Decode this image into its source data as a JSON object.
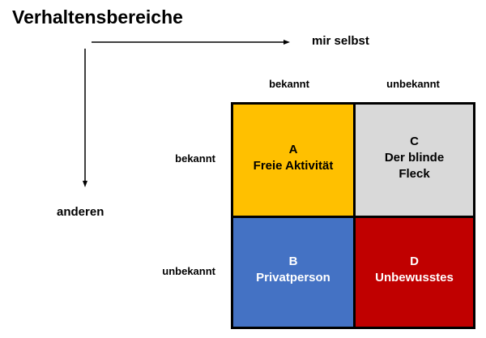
{
  "title": "Verhaltensbereiche",
  "axis_x_label": "mir selbst",
  "axis_y_label": "anderen",
  "columns": [
    "bekannt",
    "unbekannt"
  ],
  "rows": [
    "bekannt",
    "unbekannt"
  ],
  "quadrants": [
    {
      "letter": "A",
      "name": "Freie Aktivität",
      "color": "#FFC000",
      "text_color": "#000000"
    },
    {
      "letter": "C",
      "name": "Der blinde Fleck",
      "color": "#D9D9D9",
      "text_color": "#000000"
    },
    {
      "letter": "B",
      "name": "Privatperson",
      "color": "#4472C4",
      "text_color": "#FFFFFF"
    },
    {
      "letter": "D",
      "name": "Unbewusstes",
      "color": "#C00000",
      "text_color": "#FFFFFF"
    }
  ]
}
